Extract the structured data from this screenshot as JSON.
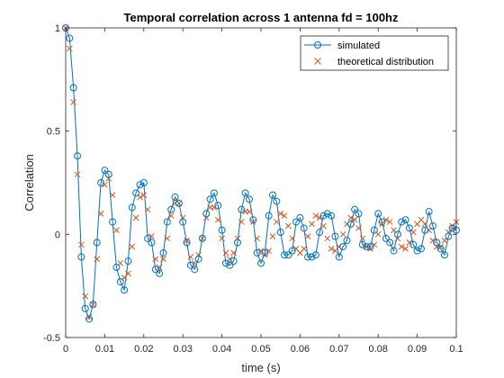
{
  "chart_data": {
    "type": "line",
    "title": "Temporal correlation across 1 antenna fd = 100hz",
    "xlabel": "time (s)",
    "ylabel": "Correlation",
    "xlim": [
      0,
      0.1
    ],
    "ylim": [
      -0.5,
      1
    ],
    "xticks": [
      "0",
      "0.01",
      "0.02",
      "0.03",
      "0.04",
      "0.05",
      "0.06",
      "0.07",
      "0.08",
      "0.09",
      "0.1"
    ],
    "yticks": [
      "-0.5",
      "0",
      "0.5",
      "1"
    ],
    "xtick_values": [
      0,
      0.01,
      0.02,
      0.03,
      0.04,
      0.05,
      0.06,
      0.07,
      0.08,
      0.09,
      0.1
    ],
    "ytick_values": [
      -0.5,
      0,
      0.5,
      1
    ],
    "grid": false,
    "legend_position": "top-right",
    "series": [
      {
        "name": "simulated",
        "style": "line-circle",
        "color": "#0072BD",
        "x": [
          0.0,
          0.001,
          0.002,
          0.003,
          0.004,
          0.005,
          0.006,
          0.007,
          0.008,
          0.009,
          0.01,
          0.011,
          0.012,
          0.013,
          0.014,
          0.015,
          0.016,
          0.017,
          0.018,
          0.019,
          0.02,
          0.021,
          0.022,
          0.023,
          0.024,
          0.025,
          0.026,
          0.027,
          0.028,
          0.029,
          0.03,
          0.031,
          0.032,
          0.033,
          0.034,
          0.035,
          0.036,
          0.037,
          0.038,
          0.039,
          0.04,
          0.041,
          0.042,
          0.043,
          0.044,
          0.045,
          0.046,
          0.047,
          0.048,
          0.049,
          0.05,
          0.051,
          0.052,
          0.053,
          0.054,
          0.055,
          0.056,
          0.057,
          0.058,
          0.059,
          0.06,
          0.061,
          0.062,
          0.063,
          0.064,
          0.065,
          0.066,
          0.067,
          0.068,
          0.069,
          0.07,
          0.071,
          0.072,
          0.073,
          0.074,
          0.075,
          0.076,
          0.077,
          0.078,
          0.079,
          0.08,
          0.081,
          0.082,
          0.083,
          0.084,
          0.085,
          0.086,
          0.087,
          0.088,
          0.089,
          0.09,
          0.091,
          0.092,
          0.093,
          0.094,
          0.095,
          0.096,
          0.097,
          0.098,
          0.099,
          0.1
        ],
        "values": [
          1.0,
          0.95,
          0.71,
          0.38,
          -0.11,
          -0.36,
          -0.41,
          -0.34,
          -0.04,
          0.25,
          0.31,
          0.29,
          0.06,
          -0.16,
          -0.23,
          -0.27,
          -0.13,
          0.13,
          0.2,
          0.24,
          0.25,
          -0.02,
          -0.04,
          -0.17,
          -0.19,
          -0.09,
          0.06,
          0.12,
          0.18,
          0.15,
          0.06,
          -0.04,
          -0.15,
          -0.17,
          -0.12,
          -0.02,
          0.1,
          0.17,
          0.2,
          0.14,
          0.02,
          -0.14,
          -0.15,
          -0.13,
          -0.04,
          0.12,
          0.2,
          0.17,
          0.07,
          -0.09,
          -0.14,
          -0.09,
          0.09,
          0.19,
          0.16,
          0.01,
          -0.1,
          -0.1,
          -0.08,
          0.06,
          0.08,
          0.03,
          -0.11,
          -0.11,
          -0.1,
          0.01,
          0.09,
          0.1,
          0.09,
          -0.01,
          -0.11,
          -0.06,
          -0.03,
          0.05,
          0.12,
          0.1,
          -0.05,
          -0.06,
          -0.06,
          0.02,
          0.1,
          0.06,
          -0.02,
          -0.04,
          -0.08,
          0.0,
          0.06,
          0.07,
          0.03,
          -0.05,
          -0.08,
          -0.07,
          0.02,
          0.11,
          0.04,
          -0.04,
          -0.07,
          -0.1,
          -0.01,
          0.03,
          0.02
        ]
      },
      {
        "name": "theoretical distribution",
        "style": "cross-marker",
        "color": "#D95319",
        "x": [
          0.0,
          0.001,
          0.002,
          0.003,
          0.004,
          0.005,
          0.006,
          0.007,
          0.008,
          0.009,
          0.01,
          0.011,
          0.012,
          0.013,
          0.014,
          0.015,
          0.016,
          0.017,
          0.018,
          0.019,
          0.02,
          0.021,
          0.022,
          0.023,
          0.024,
          0.025,
          0.026,
          0.027,
          0.028,
          0.029,
          0.03,
          0.031,
          0.032,
          0.033,
          0.034,
          0.035,
          0.036,
          0.037,
          0.038,
          0.039,
          0.04,
          0.041,
          0.042,
          0.043,
          0.044,
          0.045,
          0.046,
          0.047,
          0.048,
          0.049,
          0.05,
          0.051,
          0.052,
          0.053,
          0.054,
          0.055,
          0.056,
          0.057,
          0.058,
          0.059,
          0.06,
          0.061,
          0.062,
          0.063,
          0.064,
          0.065,
          0.066,
          0.067,
          0.068,
          0.069,
          0.07,
          0.071,
          0.072,
          0.073,
          0.074,
          0.075,
          0.076,
          0.077,
          0.078,
          0.079,
          0.08,
          0.081,
          0.082,
          0.083,
          0.084,
          0.085,
          0.086,
          0.087,
          0.088,
          0.089,
          0.09,
          0.091,
          0.092,
          0.093,
          0.094,
          0.095,
          0.096,
          0.097,
          0.098,
          0.099,
          0.1
        ],
        "values": [
          1.0,
          0.9,
          0.64,
          0.29,
          -0.05,
          -0.3,
          -0.4,
          -0.34,
          -0.12,
          0.1,
          0.24,
          0.27,
          0.19,
          0.02,
          -0.14,
          -0.21,
          -0.19,
          -0.06,
          0.08,
          0.18,
          0.19,
          0.12,
          -0.01,
          -0.12,
          -0.16,
          -0.12,
          -0.02,
          0.09,
          0.15,
          0.15,
          0.08,
          -0.03,
          -0.11,
          -0.14,
          -0.1,
          -0.02,
          0.08,
          0.13,
          0.13,
          0.07,
          -0.02,
          -0.09,
          -0.12,
          -0.09,
          -0.02,
          0.06,
          0.11,
          0.11,
          0.06,
          -0.02,
          -0.08,
          -0.1,
          -0.08,
          -0.01,
          0.06,
          0.1,
          0.09,
          0.04,
          -0.02,
          -0.07,
          -0.09,
          -0.07,
          -0.01,
          0.05,
          0.09,
          0.08,
          0.04,
          -0.02,
          -0.07,
          -0.08,
          -0.06,
          0.0,
          0.05,
          0.08,
          0.07,
          0.03,
          -0.02,
          -0.06,
          -0.07,
          -0.05,
          0.0,
          0.05,
          0.07,
          0.06,
          0.02,
          -0.02,
          -0.06,
          -0.07,
          -0.04,
          0.01,
          0.05,
          0.07,
          0.05,
          0.02,
          -0.03,
          -0.06,
          -0.06,
          -0.03,
          0.01,
          0.04,
          0.06
        ]
      }
    ]
  }
}
